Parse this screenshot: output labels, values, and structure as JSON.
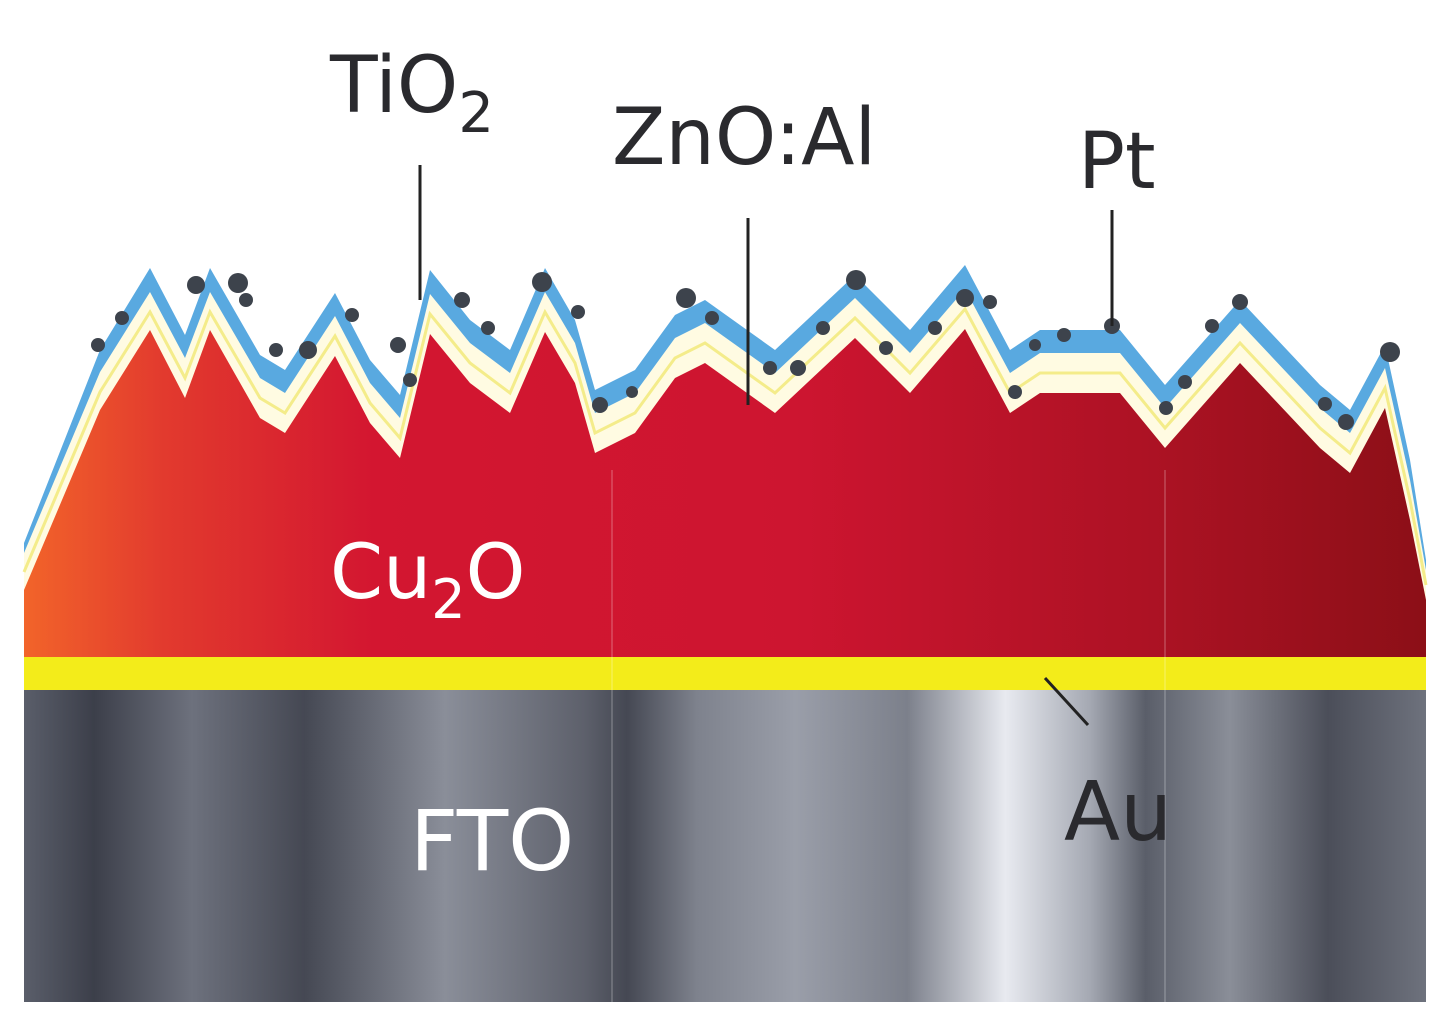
{
  "labels": {
    "tio2": {
      "base": "TiO",
      "sub": "2"
    },
    "zno": "ZnO:Al",
    "pt": "Pt",
    "cu2o": {
      "base": "Cu",
      "sub": "2",
      "tail": "O"
    },
    "fto": "FTO",
    "au": "Au"
  },
  "colors": {
    "cu2o_left": "#f2642a",
    "cu2o_mid": "#d31630",
    "cu2o_right": "#8c0f17",
    "tio2_layer": "#59a9e0",
    "zno_layer": "#fffbe2",
    "au_layer": "#f3ec1a",
    "fto_dark": "#3a3d48",
    "fto_light": "#e8eaf0",
    "pt_particle": "#3d434c",
    "leader_line": "#222222"
  }
}
